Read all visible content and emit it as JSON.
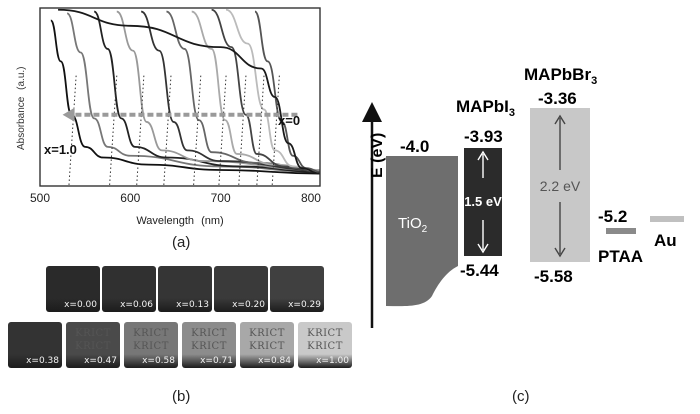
{
  "panel_a": {
    "caption": "(a)",
    "chart_data": {
      "type": "line",
      "xlabel": "Wavelength",
      "xunit": "(nm)",
      "ylabel": "Absorbance",
      "yunit": "(a.u.)",
      "xlim": [
        500,
        810
      ],
      "xticks": [
        500,
        600,
        700,
        800
      ],
      "annotations": {
        "left": "x=1.0",
        "right": "x=0"
      },
      "series": [
        {
          "color": "#111111",
          "points": [
            [
              512,
              0.93
            ],
            [
              523,
              0.7
            ],
            [
              535,
              0.4
            ],
            [
              550,
              0.22
            ],
            [
              570,
              0.16
            ],
            [
              620,
              0.12
            ],
            [
              700,
              0.09
            ],
            [
              810,
              0.07
            ]
          ]
        },
        {
          "color": "#777777",
          "points": [
            [
              530,
              0.97
            ],
            [
              545,
              0.75
            ],
            [
              560,
              0.38
            ],
            [
              575,
              0.22
            ],
            [
              600,
              0.17
            ],
            [
              700,
              0.11
            ],
            [
              810,
              0.08
            ]
          ]
        },
        {
          "color": "#222222",
          "points": [
            [
              560,
              0.98
            ],
            [
              575,
              0.77
            ],
            [
              590,
              0.38
            ],
            [
              605,
              0.22
            ],
            [
              640,
              0.16
            ],
            [
              720,
              0.11
            ],
            [
              810,
              0.08
            ]
          ]
        },
        {
          "color": "#999999",
          "points": [
            [
              585,
              0.98
            ],
            [
              603,
              0.76
            ],
            [
              618,
              0.36
            ],
            [
              635,
              0.2
            ],
            [
              680,
              0.14
            ],
            [
              810,
              0.09
            ]
          ]
        },
        {
          "color": "#333333",
          "points": [
            [
              612,
              0.98
            ],
            [
              632,
              0.76
            ],
            [
              648,
              0.36
            ],
            [
              663,
              0.2
            ],
            [
              700,
              0.14
            ],
            [
              810,
              0.09
            ]
          ]
        },
        {
          "color": "#666666",
          "points": [
            [
              640,
              0.98
            ],
            [
              660,
              0.77
            ],
            [
              676,
              0.37
            ],
            [
              690,
              0.19
            ],
            [
              740,
              0.13
            ],
            [
              810,
              0.09
            ]
          ]
        },
        {
          "color": "#aaaaaa",
          "points": [
            [
              668,
              0.98
            ],
            [
              690,
              0.77
            ],
            [
              705,
              0.37
            ],
            [
              718,
              0.18
            ],
            [
              760,
              0.12
            ],
            [
              810,
              0.09
            ]
          ]
        },
        {
          "color": "#444444",
          "points": [
            [
              690,
              0.99
            ],
            [
              712,
              0.78
            ],
            [
              728,
              0.4
            ],
            [
              740,
              0.18
            ],
            [
              770,
              0.11
            ],
            [
              810,
              0.08
            ]
          ]
        },
        {
          "color": "#bbbbbb",
          "points": [
            [
              706,
              0.99
            ],
            [
              730,
              0.8
            ],
            [
              748,
              0.43
            ],
            [
              760,
              0.2
            ],
            [
              780,
              0.11
            ],
            [
              810,
              0.08
            ]
          ]
        },
        {
          "color": "#555555",
          "points": [
            [
              738,
              0.98
            ],
            [
              752,
              0.7
            ],
            [
              768,
              0.36
            ],
            [
              780,
              0.17
            ],
            [
              795,
              0.1
            ],
            [
              810,
              0.08
            ]
          ]
        },
        {
          "color": "#1a1a1a",
          "points": [
            [
              520,
              0.99
            ],
            [
              600,
              0.9
            ],
            [
              700,
              0.78
            ],
            [
              745,
              0.66
            ],
            [
              760,
              0.5
            ],
            [
              775,
              0.24
            ],
            [
              790,
              0.1
            ],
            [
              810,
              0.07
            ]
          ]
        }
      ],
      "dotted_edges": [
        540,
        585,
        615,
        645,
        678,
        706,
        728,
        748,
        765
      ],
      "arrow": {
        "from": 785,
        "to": 525,
        "y": 0.4
      }
    }
  },
  "panel_b": {
    "caption": "(b)",
    "row1": [
      {
        "x": "x=0.00",
        "color": "#2a2a2a"
      },
      {
        "x": "x=0.06",
        "color": "#303030"
      },
      {
        "x": "x=0.13",
        "color": "#353535"
      },
      {
        "x": "x=0.20",
        "color": "#3a3a3a"
      },
      {
        "x": "x=0.29",
        "color": "#404040"
      }
    ],
    "row2": [
      {
        "x": "x=0.38",
        "color": "#333333",
        "kr": ""
      },
      {
        "x": "x=0.47",
        "color": "#4a4a4a",
        "kr": "KRICT"
      },
      {
        "x": "x=0.58",
        "color": "#777777",
        "kr": "KRICT"
      },
      {
        "x": "x=0.71",
        "color": "#8c8c8c",
        "kr": "KRICT"
      },
      {
        "x": "x=0.84",
        "color": "#a8a8a8",
        "kr": "KRICT"
      },
      {
        "x": "x=1.00",
        "color": "#c9c9c9",
        "kr": "KRICT"
      }
    ]
  },
  "panel_c": {
    "caption": "(c)",
    "axis_label": "E (eV)",
    "tio2": {
      "label": "TiO",
      "sub": "2",
      "value": "-4.0",
      "color": "#6e6e6e"
    },
    "mapbi3": {
      "label": "MAPbI",
      "sub": "3",
      "top": "-3.93",
      "bottom": "-5.44",
      "gap": "1.5 eV",
      "color": "#2b2b2b"
    },
    "mapbbr3": {
      "label": "MAPbBr",
      "sub": "3",
      "top": "-3.36",
      "bottom": "-5.58",
      "gap": "2.2 eV",
      "color": "#c8c8c8"
    },
    "ptaa": {
      "label": "PTAA",
      "value": "-5.2",
      "color": "#8a8a8a"
    },
    "au": {
      "label": "Au",
      "color": "#c0c0c0"
    }
  }
}
